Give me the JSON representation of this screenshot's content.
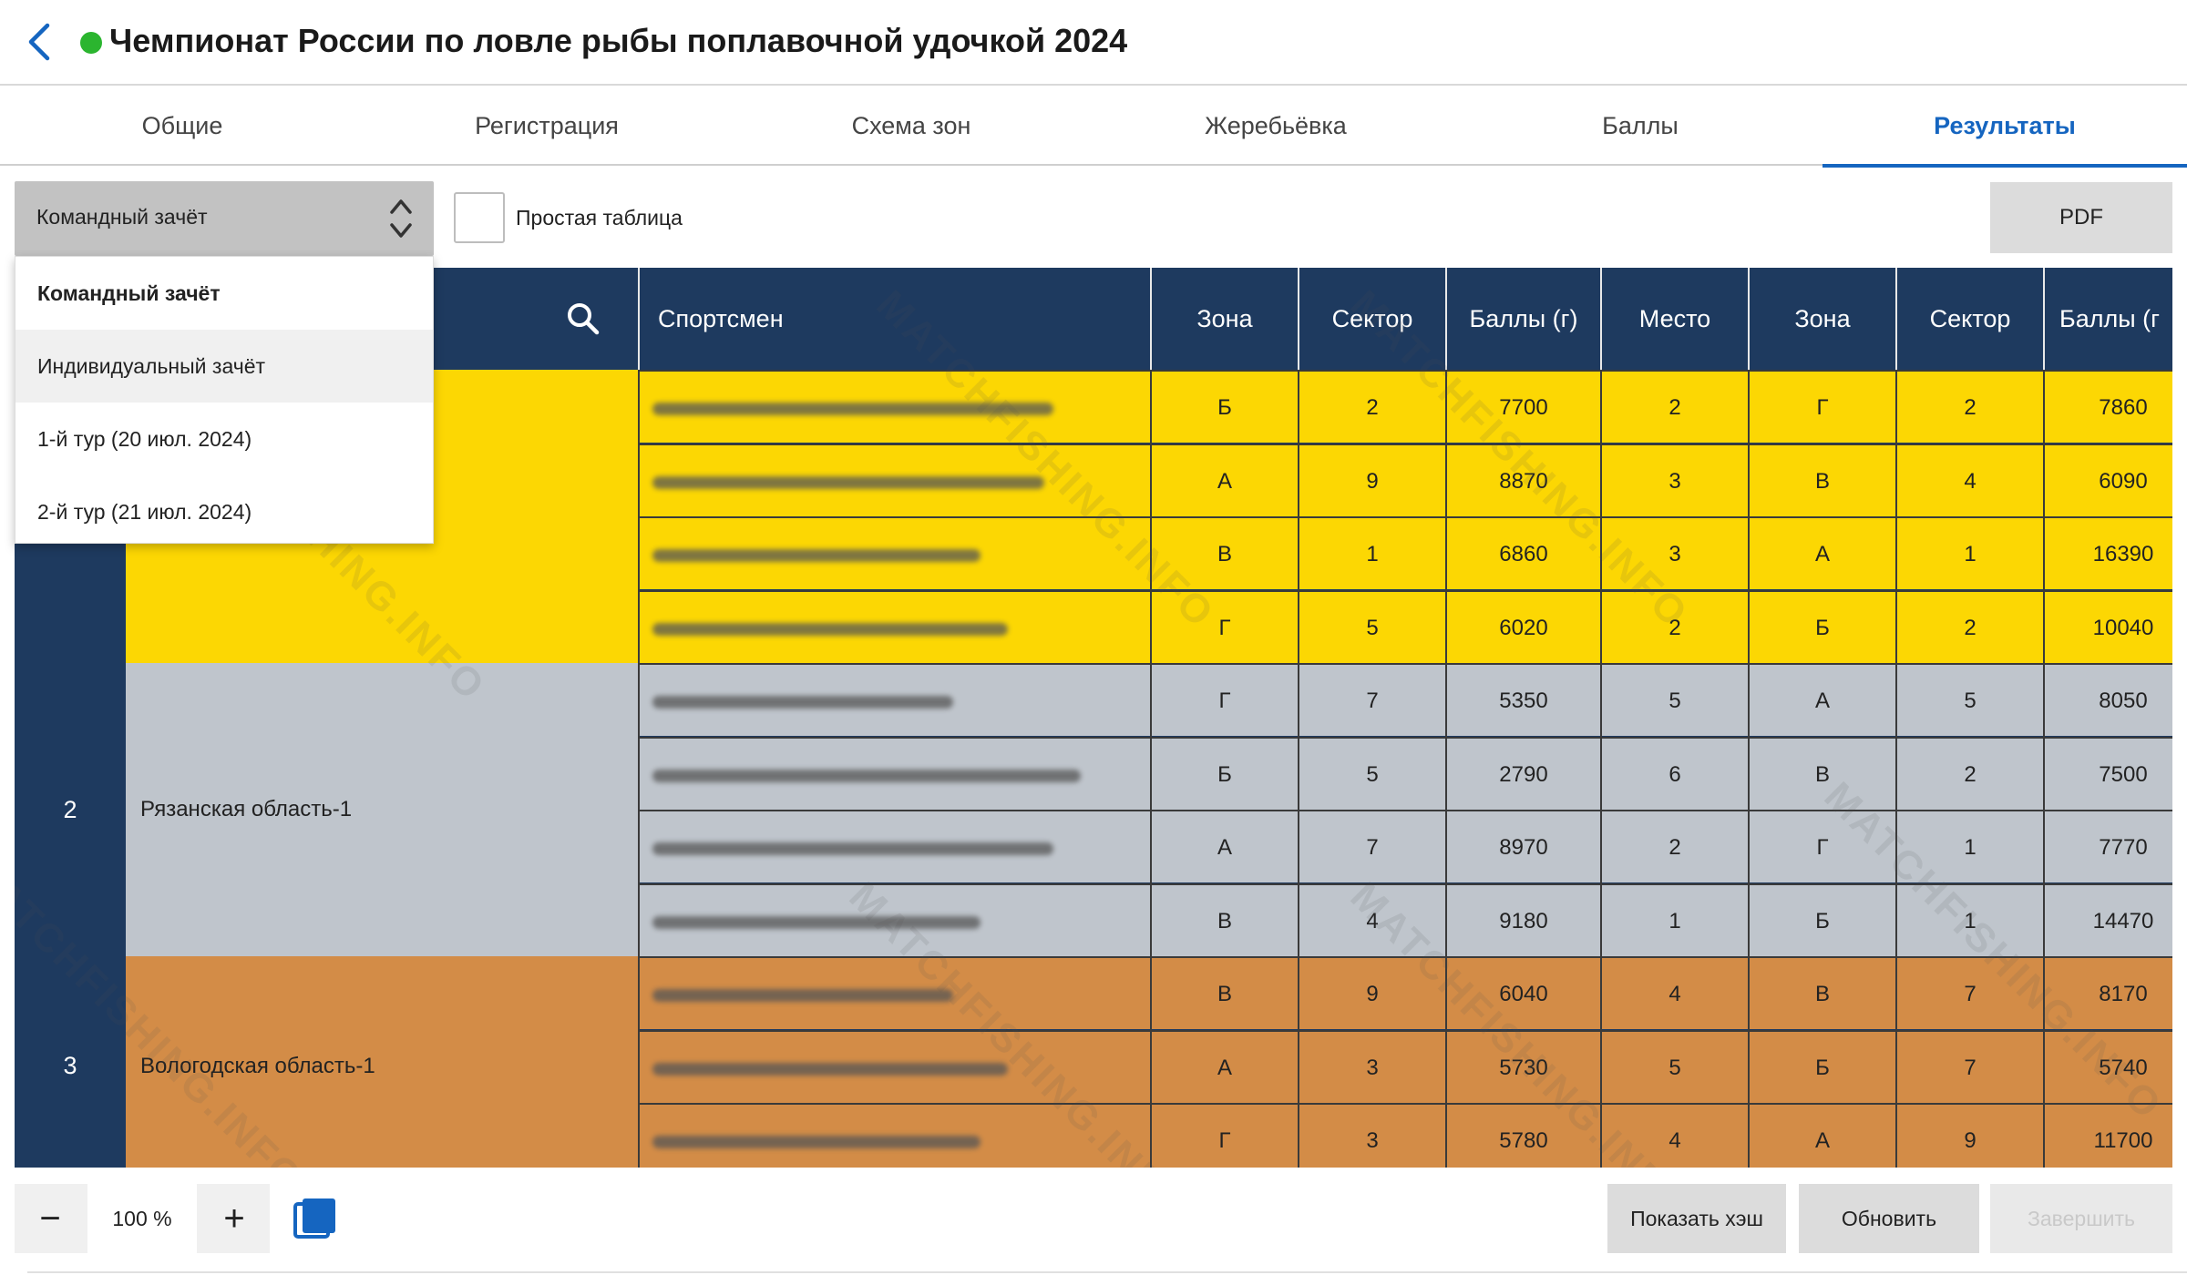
{
  "header": {
    "title": "Чемпионат России по ловле рыбы поплавочной удочкой 2024",
    "back_icon": "chevron-left-icon",
    "status_color": "#2bb52f"
  },
  "tabs": [
    {
      "label": "Общие",
      "active": false
    },
    {
      "label": "Регистрация",
      "active": false
    },
    {
      "label": "Схема зон",
      "active": false
    },
    {
      "label": "Жеребьёвка",
      "active": false
    },
    {
      "label": "Баллы",
      "active": false
    },
    {
      "label": "Результаты",
      "active": true
    }
  ],
  "toolbar": {
    "select_value": "Командный зачёт",
    "simple_table_label": "Простая таблица",
    "pdf_label": "PDF"
  },
  "dropdown": {
    "options": [
      "Командный зачёт",
      "Индивидуальный зачёт",
      "1-й тур (20 июл. 2024)",
      "2-й тур (21 июл. 2024)"
    ]
  },
  "table": {
    "headers": {
      "athlete": "Спортсмен",
      "zone1": "Зона",
      "sector1": "Сектор",
      "points1": "Баллы (г)",
      "place1": "Место",
      "zone2": "Зона",
      "sector2": "Сектор",
      "points2": "Баллы (г"
    },
    "teams": [
      {
        "rank": "",
        "name": "",
        "color": "#fcd703",
        "rows": [
          {
            "zone1": "Б",
            "sector1": "2",
            "points1": "7700",
            "place1": "2",
            "zone2": "Г",
            "sector2": "2",
            "points2": "7860"
          },
          {
            "zone1": "А",
            "sector1": "9",
            "points1": "8870",
            "place1": "3",
            "zone2": "В",
            "sector2": "4",
            "points2": "6090"
          },
          {
            "zone1": "В",
            "sector1": "1",
            "points1": "6860",
            "place1": "3",
            "zone2": "А",
            "sector2": "1",
            "points2": "16390"
          },
          {
            "zone1": "Г",
            "sector1": "5",
            "points1": "6020",
            "place1": "2",
            "zone2": "Б",
            "sector2": "2",
            "points2": "10040"
          }
        ]
      },
      {
        "rank": "2",
        "name": "Рязанская область-1",
        "color": "#bfc5cc",
        "rows": [
          {
            "zone1": "Г",
            "sector1": "7",
            "points1": "5350",
            "place1": "5",
            "zone2": "А",
            "sector2": "5",
            "points2": "8050"
          },
          {
            "zone1": "Б",
            "sector1": "5",
            "points1": "2790",
            "place1": "6",
            "zone2": "В",
            "sector2": "2",
            "points2": "7500"
          },
          {
            "zone1": "А",
            "sector1": "7",
            "points1": "8970",
            "place1": "2",
            "zone2": "Г",
            "sector2": "1",
            "points2": "7770"
          },
          {
            "zone1": "В",
            "sector1": "4",
            "points1": "9180",
            "place1": "1",
            "zone2": "Б",
            "sector2": "1",
            "points2": "14470"
          }
        ]
      },
      {
        "rank": "3",
        "name": "Вологодская область-1",
        "color": "#d38c47",
        "rows": [
          {
            "zone1": "В",
            "sector1": "9",
            "points1": "6040",
            "place1": "4",
            "zone2": "В",
            "sector2": "7",
            "points2": "8170"
          },
          {
            "zone1": "А",
            "sector1": "3",
            "points1": "5730",
            "place1": "5",
            "zone2": "Б",
            "sector2": "7",
            "points2": "5740"
          },
          {
            "zone1": "Г",
            "sector1": "3",
            "points1": "5780",
            "place1": "4",
            "zone2": "А",
            "sector2": "9",
            "points2": "11700"
          }
        ]
      }
    ]
  },
  "watermark": "MATCHFISHING.INFO",
  "footer": {
    "zoom_value": "100 %",
    "zoom_minus": "−",
    "zoom_plus": "+",
    "show_hash_label": "Показать хэш",
    "refresh_label": "Обновить",
    "finish_label": "Завершить",
    "copy_icon": "copy-icon"
  }
}
